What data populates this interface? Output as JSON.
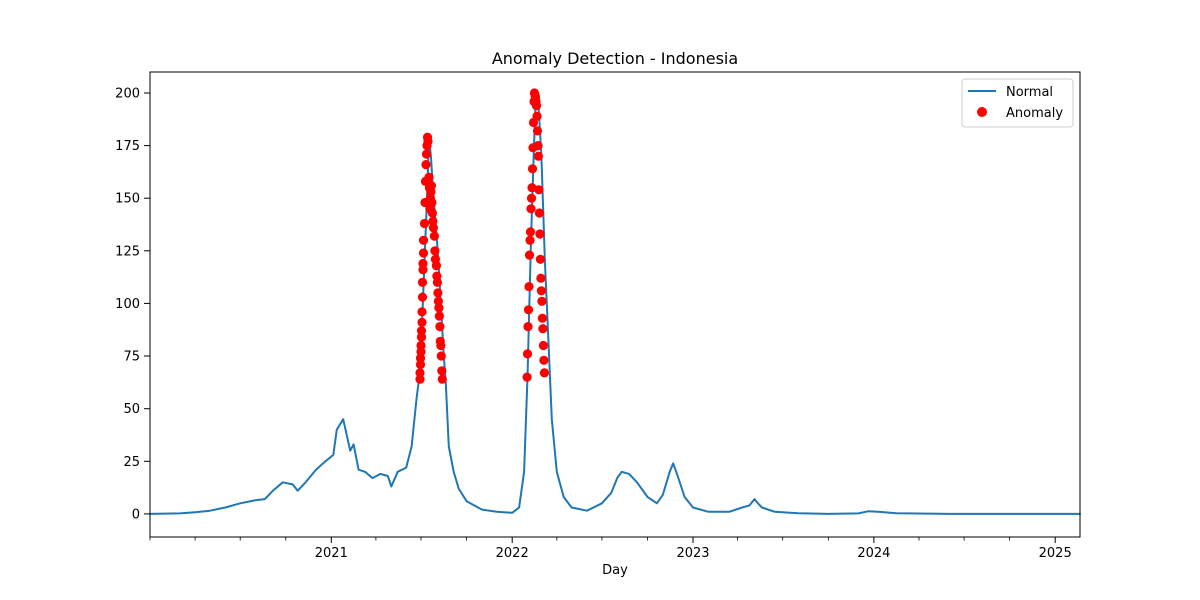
{
  "chart_data": {
    "type": "line",
    "title": "Anomaly Detection - Indonesia",
    "xlabel": "Day",
    "ylabel": "",
    "xlim": [
      "2020-01-01",
      "2025-02-20"
    ],
    "ylim": [
      -11,
      210
    ],
    "x_ticks": [
      "2021",
      "2022",
      "2023",
      "2024",
      "2025"
    ],
    "y_ticks": [
      0,
      25,
      50,
      75,
      100,
      125,
      150,
      175,
      200
    ],
    "grid": false,
    "legend_position": "top-right",
    "colors": {
      "line": "#1f77b4",
      "anomaly": "#ff0000"
    },
    "series": [
      {
        "name": "Normal",
        "kind": "line",
        "points": [
          [
            "2020-01-01",
            0
          ],
          [
            "2020-03-01",
            0.2
          ],
          [
            "2020-04-01",
            0.8
          ],
          [
            "2020-05-01",
            1.5
          ],
          [
            "2020-06-01",
            3
          ],
          [
            "2020-07-01",
            5
          ],
          [
            "2020-08-01",
            6.5
          ],
          [
            "2020-08-20",
            7
          ],
          [
            "2020-09-05",
            11
          ],
          [
            "2020-09-25",
            15
          ],
          [
            "2020-10-15",
            14
          ],
          [
            "2020-10-25",
            11
          ],
          [
            "2020-11-10",
            15
          ],
          [
            "2020-12-01",
            21
          ],
          [
            "2020-12-20",
            25
          ],
          [
            "2021-01-05",
            28
          ],
          [
            "2021-01-12",
            40
          ],
          [
            "2021-01-25",
            45
          ],
          [
            "2021-02-08",
            30
          ],
          [
            "2021-02-15",
            33
          ],
          [
            "2021-02-25",
            21
          ],
          [
            "2021-03-10",
            20
          ],
          [
            "2021-03-25",
            17
          ],
          [
            "2021-04-10",
            19
          ],
          [
            "2021-04-25",
            18
          ],
          [
            "2021-05-02",
            13
          ],
          [
            "2021-05-15",
            20
          ],
          [
            "2021-06-01",
            22
          ],
          [
            "2021-06-12",
            32
          ],
          [
            "2021-06-22",
            55
          ],
          [
            "2021-06-27",
            64
          ],
          [
            "2021-07-03",
            90
          ],
          [
            "2021-07-08",
            120
          ],
          [
            "2021-07-13",
            150
          ],
          [
            "2021-07-17",
            179
          ],
          [
            "2021-07-21",
            170
          ],
          [
            "2021-07-25",
            155
          ],
          [
            "2021-07-30",
            140
          ],
          [
            "2021-08-05",
            120
          ],
          [
            "2021-08-10",
            100
          ],
          [
            "2021-08-16",
            75
          ],
          [
            "2021-08-20",
            62
          ],
          [
            "2021-08-26",
            32
          ],
          [
            "2021-09-05",
            20
          ],
          [
            "2021-09-15",
            12
          ],
          [
            "2021-10-01",
            6
          ],
          [
            "2021-11-01",
            2
          ],
          [
            "2021-12-01",
            1
          ],
          [
            "2022-01-01",
            0.5
          ],
          [
            "2022-01-15",
            3
          ],
          [
            "2022-01-25",
            20
          ],
          [
            "2022-02-01",
            65
          ],
          [
            "2022-02-08",
            130
          ],
          [
            "2022-02-14",
            175
          ],
          [
            "2022-02-18",
            200
          ],
          [
            "2022-02-23",
            195
          ],
          [
            "2022-03-01",
            170
          ],
          [
            "2022-03-08",
            120
          ],
          [
            "2022-03-14",
            88
          ],
          [
            "2022-03-18",
            67
          ],
          [
            "2022-03-22",
            45
          ],
          [
            "2022-04-01",
            20
          ],
          [
            "2022-04-15",
            8
          ],
          [
            "2022-05-01",
            3
          ],
          [
            "2022-06-01",
            1.5
          ],
          [
            "2022-07-01",
            5
          ],
          [
            "2022-07-20",
            10
          ],
          [
            "2022-08-01",
            17
          ],
          [
            "2022-08-10",
            20
          ],
          [
            "2022-08-25",
            19
          ],
          [
            "2022-09-10",
            15
          ],
          [
            "2022-10-01",
            8
          ],
          [
            "2022-10-20",
            5
          ],
          [
            "2022-11-01",
            9
          ],
          [
            "2022-11-15",
            20
          ],
          [
            "2022-11-22",
            24
          ],
          [
            "2022-12-01",
            18
          ],
          [
            "2022-12-15",
            8
          ],
          [
            "2023-01-01",
            3
          ],
          [
            "2023-02-01",
            1
          ],
          [
            "2023-03-15",
            1
          ],
          [
            "2023-04-10",
            3
          ],
          [
            "2023-04-25",
            4
          ],
          [
            "2023-05-05",
            7
          ],
          [
            "2023-05-12",
            5
          ],
          [
            "2023-05-20",
            3
          ],
          [
            "2023-06-15",
            1
          ],
          [
            "2023-08-01",
            0.3
          ],
          [
            "2023-10-01",
            0
          ],
          [
            "2023-12-01",
            0.2
          ],
          [
            "2023-12-20",
            1.2
          ],
          [
            "2024-01-10",
            1
          ],
          [
            "2024-02-15",
            0.3
          ],
          [
            "2024-03-10",
            0.2
          ],
          [
            "2024-06-01",
            0
          ],
          [
            "2025-02-20",
            0
          ]
        ]
      },
      {
        "name": "Anomaly",
        "kind": "scatter",
        "points": [
          [
            "2021-06-29",
            64
          ],
          [
            "2021-06-29",
            67
          ],
          [
            "2021-06-30",
            71
          ],
          [
            "2021-06-30",
            74
          ],
          [
            "2021-07-01",
            77
          ],
          [
            "2021-07-01",
            80
          ],
          [
            "2021-07-02",
            84
          ],
          [
            "2021-07-02",
            87
          ],
          [
            "2021-07-03",
            91
          ],
          [
            "2021-07-03",
            96
          ],
          [
            "2021-07-04",
            103
          ],
          [
            "2021-07-04",
            110
          ],
          [
            "2021-07-05",
            116
          ],
          [
            "2021-07-05",
            119
          ],
          [
            "2021-07-06",
            124
          ],
          [
            "2021-07-06",
            130
          ],
          [
            "2021-07-08",
            138
          ],
          [
            "2021-07-09",
            148
          ],
          [
            "2021-07-10",
            158
          ],
          [
            "2021-07-11",
            166
          ],
          [
            "2021-07-12",
            171
          ],
          [
            "2021-07-13",
            175
          ],
          [
            "2021-07-14",
            179
          ],
          [
            "2021-07-15",
            177
          ],
          [
            "2021-07-17",
            160
          ],
          [
            "2021-07-18",
            155
          ],
          [
            "2021-07-19",
            145
          ],
          [
            "2021-07-20",
            150
          ],
          [
            "2021-07-21",
            153
          ],
          [
            "2021-07-22",
            156
          ],
          [
            "2021-07-23",
            148
          ],
          [
            "2021-07-24",
            143
          ],
          [
            "2021-07-25",
            139
          ],
          [
            "2021-07-26",
            136
          ],
          [
            "2021-07-28",
            132
          ],
          [
            "2021-07-29",
            125
          ],
          [
            "2021-07-30",
            121
          ],
          [
            "2021-08-01",
            118
          ],
          [
            "2021-08-02",
            113
          ],
          [
            "2021-08-03",
            110
          ],
          [
            "2021-08-04",
            105
          ],
          [
            "2021-08-05",
            101
          ],
          [
            "2021-08-06",
            98
          ],
          [
            "2021-08-07",
            94
          ],
          [
            "2021-08-08",
            89
          ],
          [
            "2021-08-09",
            82
          ],
          [
            "2021-08-10",
            80
          ],
          [
            "2021-08-11",
            75
          ],
          [
            "2021-08-12",
            68
          ],
          [
            "2021-08-13",
            64
          ],
          [
            "2022-01-31",
            65
          ],
          [
            "2022-02-01",
            76
          ],
          [
            "2022-02-02",
            89
          ],
          [
            "2022-02-03",
            97
          ],
          [
            "2022-02-04",
            108
          ],
          [
            "2022-02-05",
            123
          ],
          [
            "2022-02-06",
            130
          ],
          [
            "2022-02-07",
            134
          ],
          [
            "2022-02-08",
            145
          ],
          [
            "2022-02-09",
            150
          ],
          [
            "2022-02-10",
            155
          ],
          [
            "2022-02-11",
            164
          ],
          [
            "2022-02-12",
            174
          ],
          [
            "2022-02-13",
            186
          ],
          [
            "2022-02-14",
            196
          ],
          [
            "2022-02-15",
            200
          ],
          [
            "2022-02-16",
            199
          ],
          [
            "2022-02-17",
            198
          ],
          [
            "2022-02-18",
            196
          ],
          [
            "2022-02-19",
            194
          ],
          [
            "2022-02-20",
            189
          ],
          [
            "2022-02-21",
            182
          ],
          [
            "2022-02-22",
            175
          ],
          [
            "2022-02-23",
            170
          ],
          [
            "2022-02-24",
            154
          ],
          [
            "2022-02-25",
            143
          ],
          [
            "2022-02-26",
            133
          ],
          [
            "2022-02-27",
            121
          ],
          [
            "2022-02-28",
            112
          ],
          [
            "2022-03-01",
            106
          ],
          [
            "2022-03-02",
            101
          ],
          [
            "2022-03-03",
            93
          ],
          [
            "2022-03-04",
            88
          ],
          [
            "2022-03-05",
            80
          ],
          [
            "2022-03-06",
            73
          ],
          [
            "2022-03-07",
            67
          ]
        ]
      }
    ]
  }
}
